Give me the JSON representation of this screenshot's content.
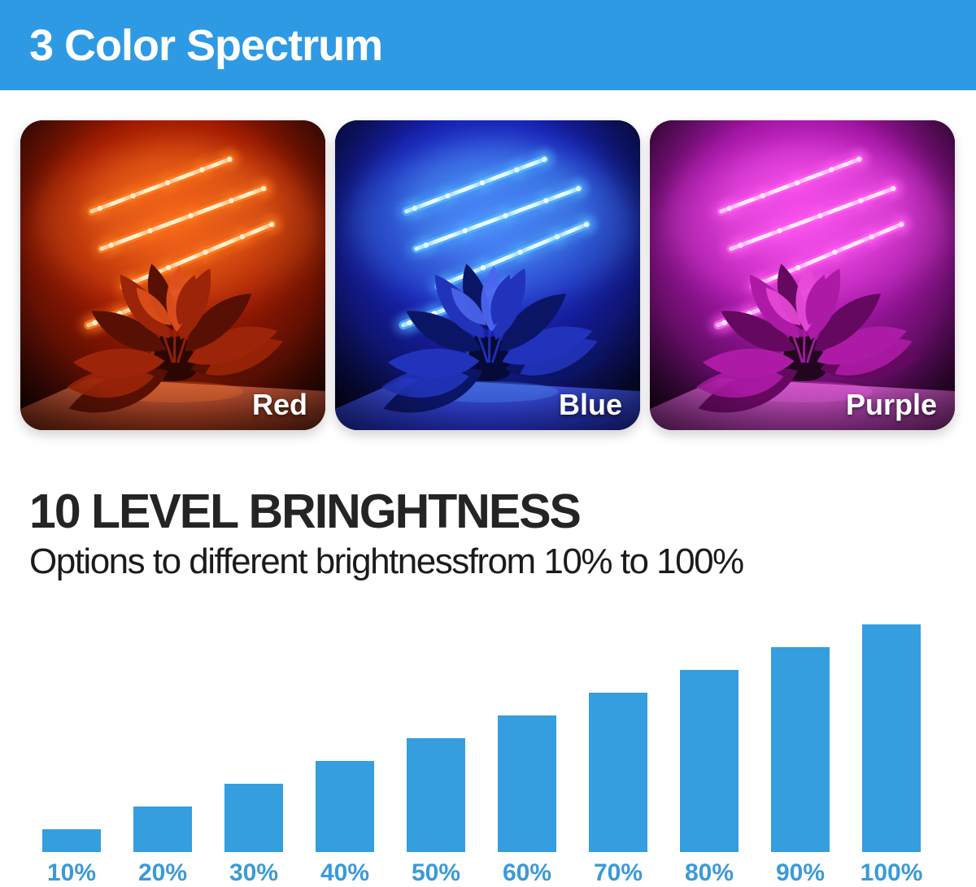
{
  "header": {
    "title": "3 Color Spectrum",
    "bg_color": "#2e9ae3",
    "text_color": "#ffffff"
  },
  "panels": [
    {
      "label": "Red",
      "accent_color": "#ff3c00",
      "colors": {
        "bg_core": "#e84a10",
        "bg_mid": "#9e1a03",
        "bg_edge": "#170301",
        "strip_core": "#fff3cf",
        "strip_glow": "#ff7a22",
        "leaf_dark": "#571003",
        "leaf_mid": "#9c2408",
        "leaf_rim": "#e0501c",
        "table_light": "#c65a3c",
        "table_dark": "#6e2511",
        "vase": "#2c0702"
      }
    },
    {
      "label": "Blue",
      "accent_color": "#2b3cff",
      "colors": {
        "bg_core": "#3d55f2",
        "bg_mid": "#1822b4",
        "bg_edge": "#020317",
        "strip_core": "#eaffff",
        "strip_glow": "#55b0ff",
        "leaf_dark": "#0b1566",
        "leaf_mid": "#2133bb",
        "leaf_rim": "#4c66ee",
        "table_light": "#4052d8",
        "table_dark": "#1c27a0",
        "vase": "#060a38"
      }
    },
    {
      "label": "Purple",
      "accent_color": "#ff2de8",
      "colors": {
        "bg_core": "#ec3ae2",
        "bg_mid": "#a416a6",
        "bg_edge": "#180219",
        "strip_core": "#ffeeff",
        "strip_glow": "#ff5ef2",
        "leaf_dark": "#64095f",
        "leaf_mid": "#ad1ba6",
        "leaf_rim": "#e84ad8",
        "table_light": "#c856c2",
        "table_dark": "#7e2a7c",
        "vase": "#22051f"
      }
    }
  ],
  "brightness_section": {
    "heading": "10 LEVEL BRINGHTNESS",
    "subheading": "Options to different brightnessfrom 10% to 100%"
  },
  "chart_data": {
    "type": "bar",
    "categories": [
      "10%",
      "20%",
      "30%",
      "40%",
      "50%",
      "60%",
      "70%",
      "80%",
      "90%",
      "100%"
    ],
    "values": [
      10,
      20,
      30,
      40,
      50,
      60,
      70,
      80,
      90,
      100
    ],
    "title": "10 LEVEL BRINGHTNESS",
    "xlabel": "",
    "ylabel": "",
    "ylim": [
      0,
      100
    ],
    "bar_color": "#349edf",
    "label_color": "#3b9ad8",
    "grid": false,
    "legend": false
  }
}
